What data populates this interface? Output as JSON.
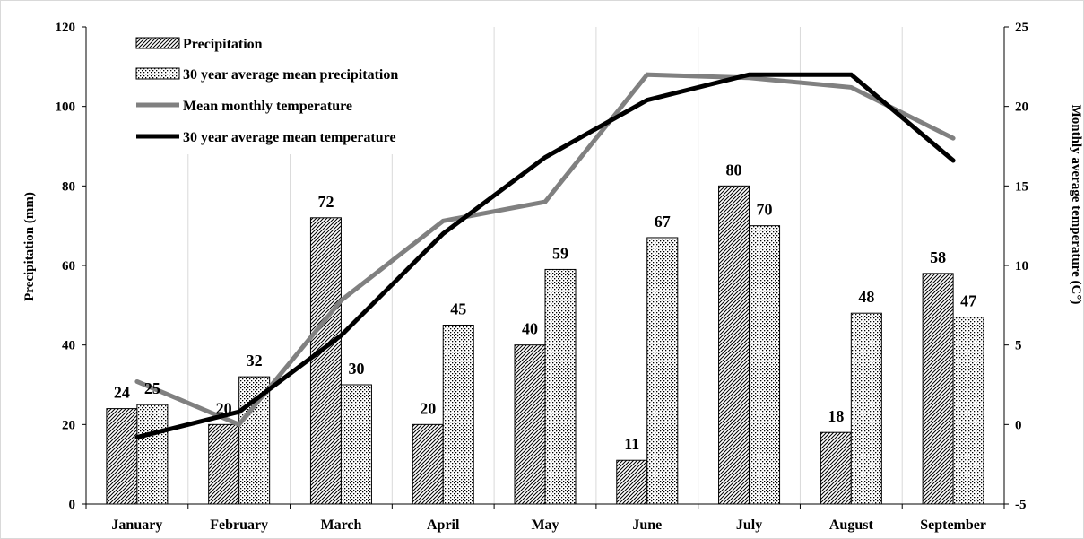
{
  "chart_data": {
    "type": "bar",
    "categories": [
      "January",
      "February",
      "March",
      "April",
      "May",
      "June",
      "July",
      "August",
      "September"
    ],
    "series": [
      {
        "name": "Precipitation",
        "kind": "bar",
        "axis": "left",
        "pattern": "diagonal-hatch",
        "values": [
          24,
          20,
          72,
          20,
          40,
          11,
          80,
          18,
          58
        ]
      },
      {
        "name": "30 year average  mean precipitation",
        "kind": "bar",
        "axis": "left",
        "pattern": "dots",
        "values": [
          25,
          32,
          30,
          45,
          59,
          67,
          70,
          48,
          47
        ]
      },
      {
        "name": "Mean monthly temperature",
        "kind": "line",
        "axis": "right",
        "color": "#808080",
        "values": [
          2.7,
          0,
          7.8,
          12.8,
          14,
          22,
          21.8,
          21.2,
          18
        ]
      },
      {
        "name": "30 year average  mean temperature",
        "kind": "line",
        "axis": "right",
        "color": "#000000",
        "values": [
          -0.8,
          0.8,
          5.6,
          12,
          16.8,
          20.4,
          22,
          22,
          16.6
        ]
      }
    ],
    "data_labels": {
      "precipitation": [
        "24",
        "20",
        "72",
        "20",
        "40",
        "11",
        "80",
        "18",
        "58"
      ],
      "avg_precipitation": [
        "25",
        "32",
        "30",
        "45",
        "59",
        "67",
        "70",
        "48",
        "47"
      ]
    },
    "ylabel": "Precipitation (mm)",
    "y2label": "Monthly average temperature (C°)",
    "ylim": [
      0,
      120
    ],
    "y2lim": [
      -5,
      25
    ],
    "yticks": [
      "0",
      "20",
      "40",
      "60",
      "80",
      "100",
      "120"
    ],
    "y2ticks": [
      "-5",
      "0",
      "5",
      "10",
      "15",
      "20",
      "25"
    ],
    "grid": "vertical",
    "legend_position": "top-left"
  }
}
